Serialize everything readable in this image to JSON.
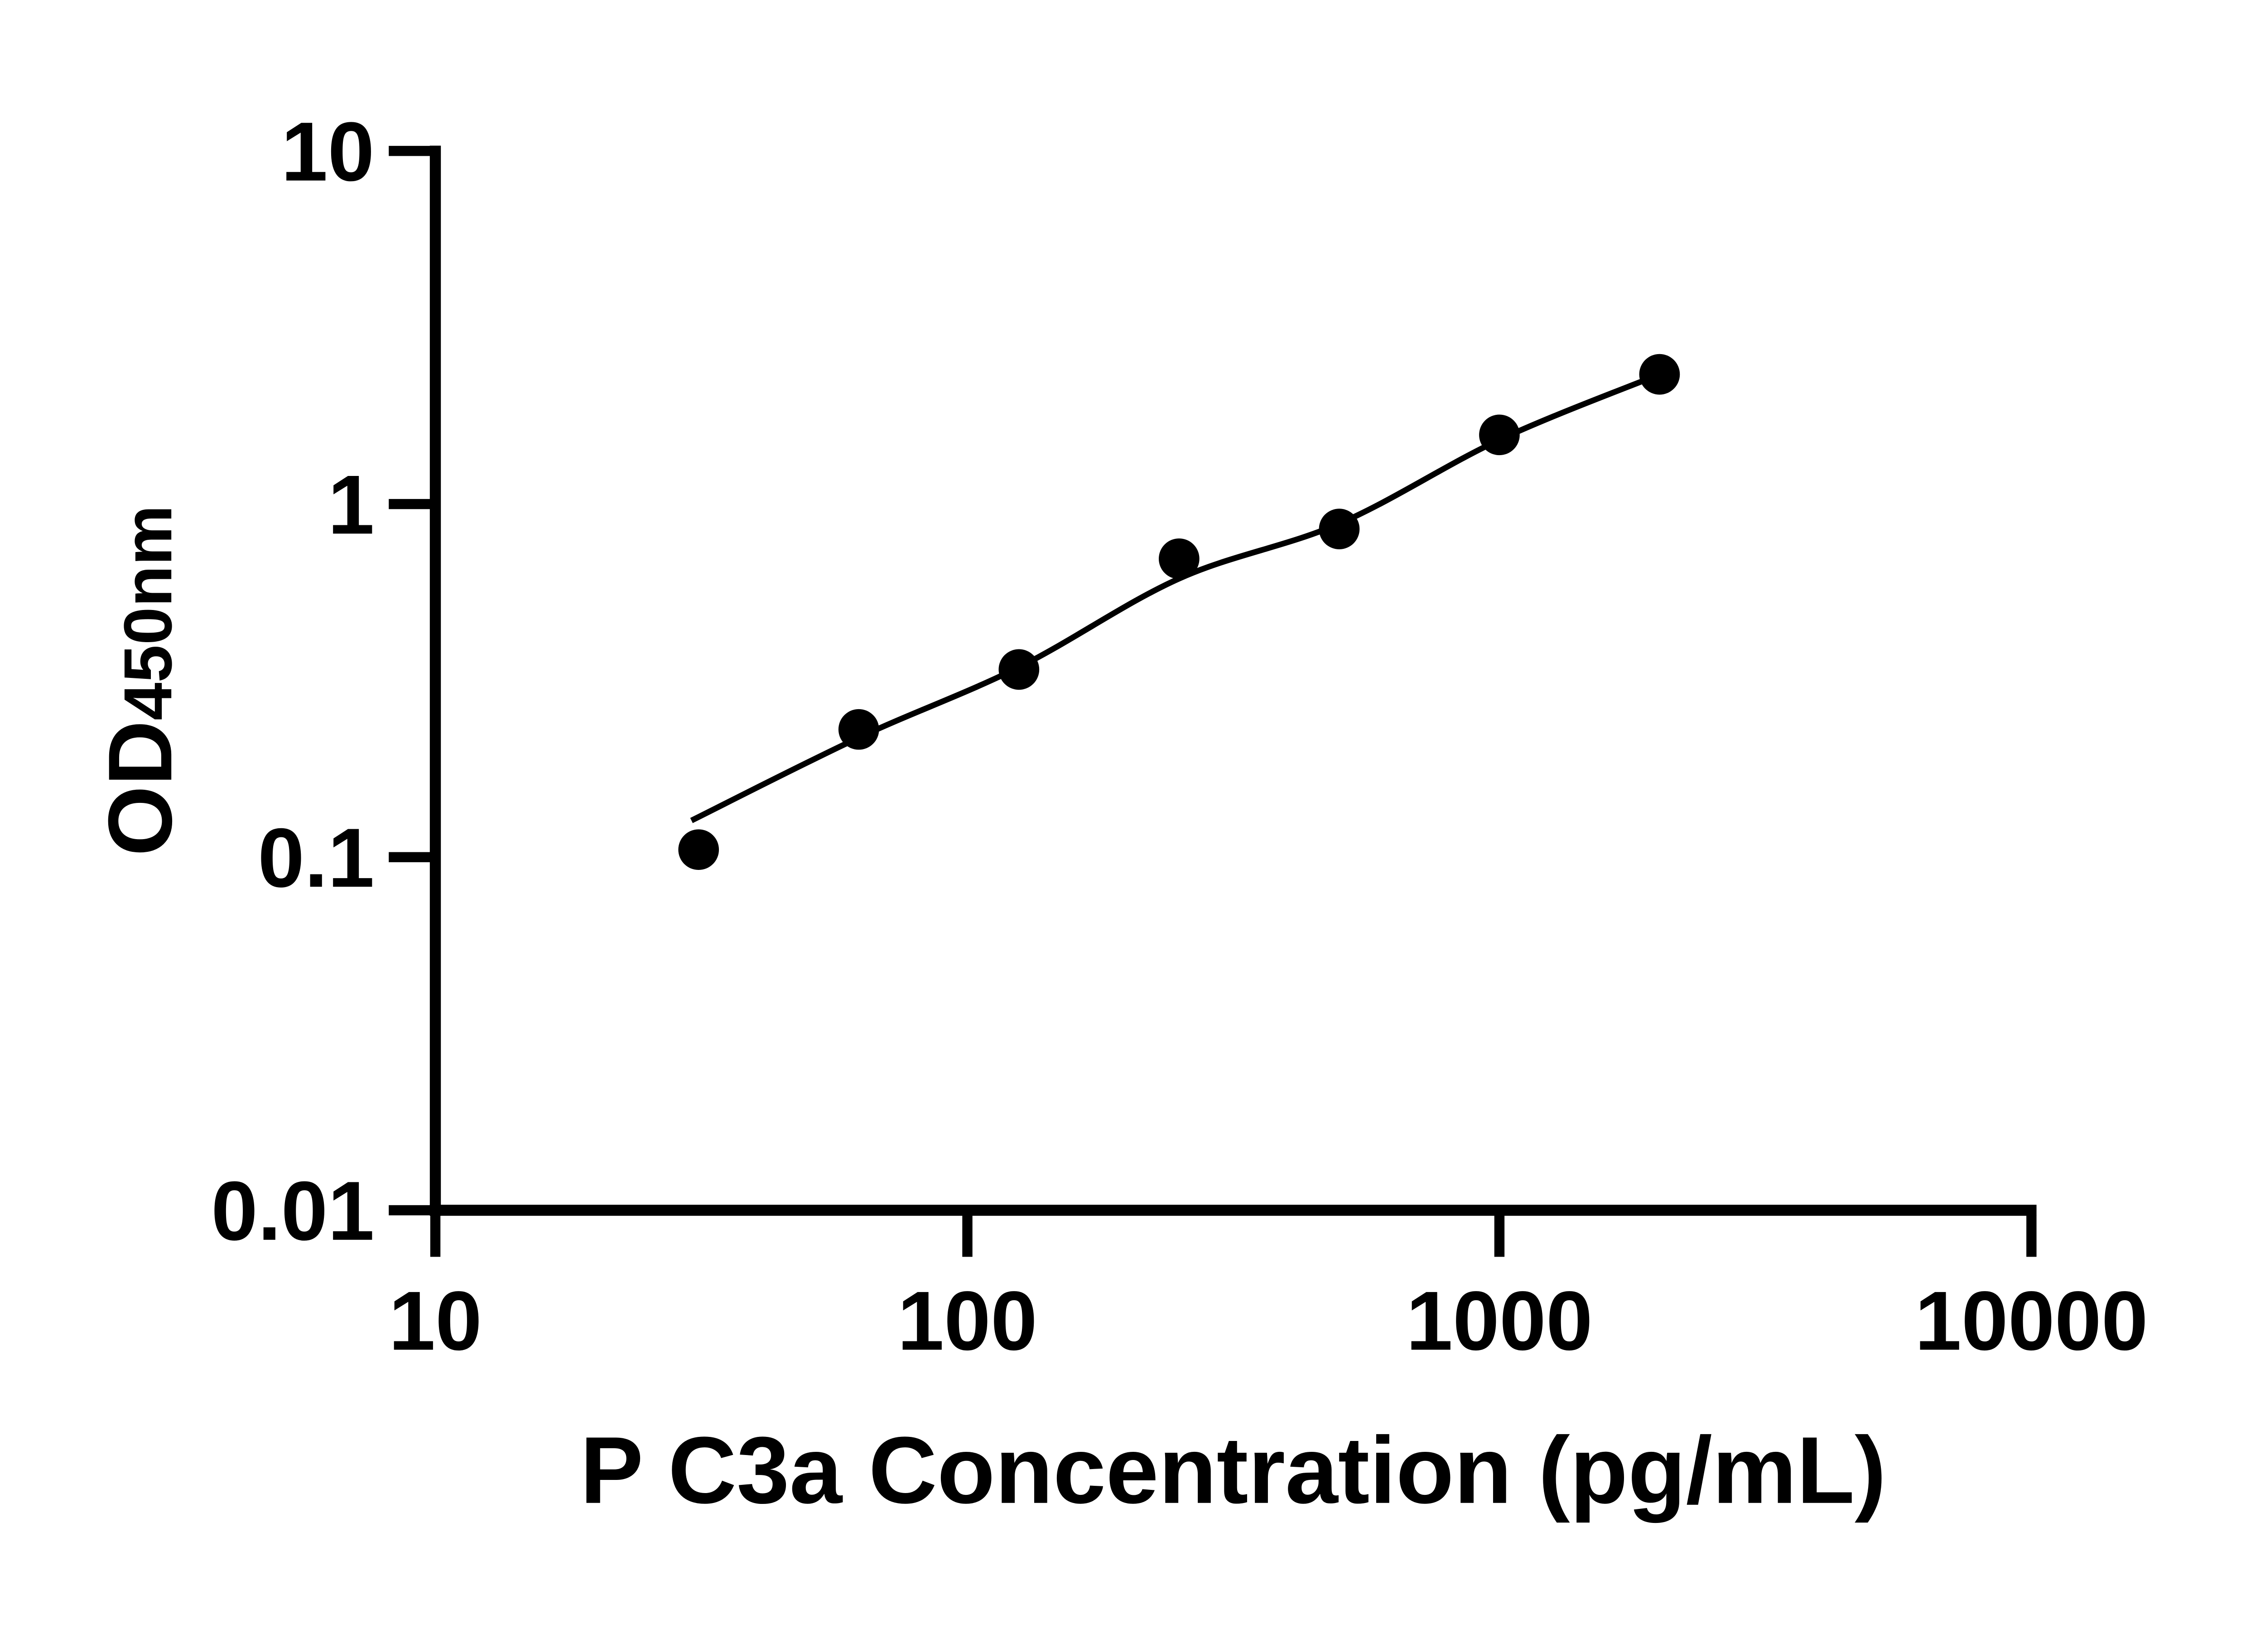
{
  "figure": {
    "background_color": "#ffffff",
    "ink_color": "#000000"
  },
  "chart_data": {
    "type": "scatter",
    "title": "",
    "xlabel": "P C3a Concentration (pg/mL)",
    "ylabel": "OD450nm",
    "ylabel_main": "OD",
    "ylabel_sub": "450nm",
    "x_scale": "log",
    "y_scale": "log",
    "xlim": [
      10,
      10000
    ],
    "ylim": [
      0.01,
      10
    ],
    "grid": false,
    "legend": false,
    "x_ticks": {
      "values": [
        10,
        100,
        1000,
        10000
      ],
      "labels": [
        "10",
        "100",
        "1000",
        "10000"
      ]
    },
    "y_ticks": {
      "values": [
        10,
        1,
        0.1,
        0.01
      ],
      "labels": [
        "10",
        "1",
        "0.1",
        "0.01"
      ]
    },
    "series": [
      {
        "name": "P C3a standard curve points",
        "marker": "filled-circle",
        "color": "#000000",
        "x": [
          31.25,
          62.5,
          125,
          250,
          500,
          1000,
          2000
        ],
        "y": [
          0.105,
          0.23,
          0.34,
          0.7,
          0.85,
          1.57,
          2.33
        ]
      }
    ],
    "fit_curve": {
      "name": "fitted standard curve line",
      "color": "#000000",
      "x": [
        30.3,
        62.5,
        125,
        250,
        500,
        1000,
        2000
      ],
      "y": [
        0.127,
        0.218,
        0.345,
        0.615,
        0.88,
        1.52,
        2.33
      ]
    }
  }
}
